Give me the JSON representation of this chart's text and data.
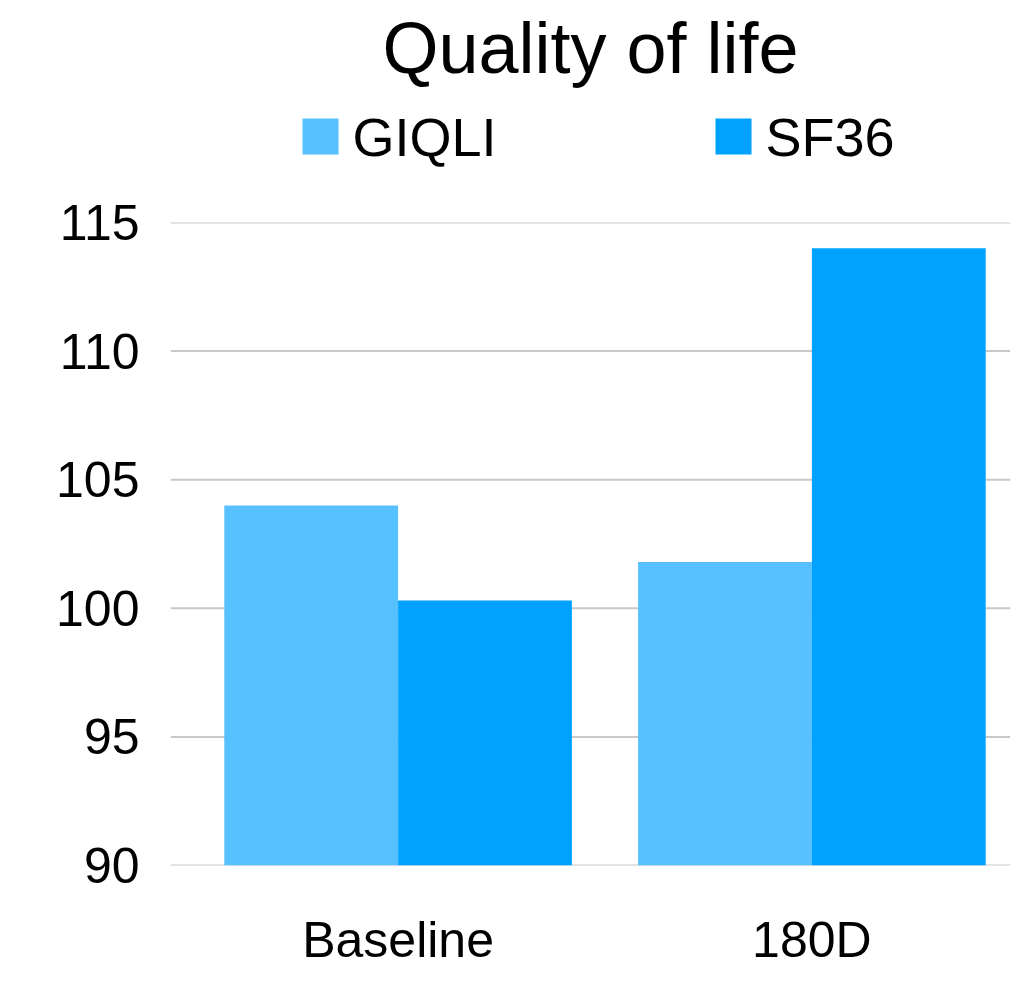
{
  "chart_data": {
    "type": "bar",
    "title": "Quality of life",
    "categories": [
      "Baseline",
      "180D"
    ],
    "series": [
      {
        "name": "GIQLI",
        "color": "#57c0ff",
        "values": [
          104,
          101.8
        ]
      },
      {
        "name": "SF36",
        "color": "#00a2ff",
        "values": [
          100.3,
          114
        ]
      }
    ],
    "ylim": [
      90,
      115
    ],
    "yticks": [
      90,
      95,
      100,
      105,
      110,
      115
    ],
    "grid": "y",
    "legend": "top"
  }
}
